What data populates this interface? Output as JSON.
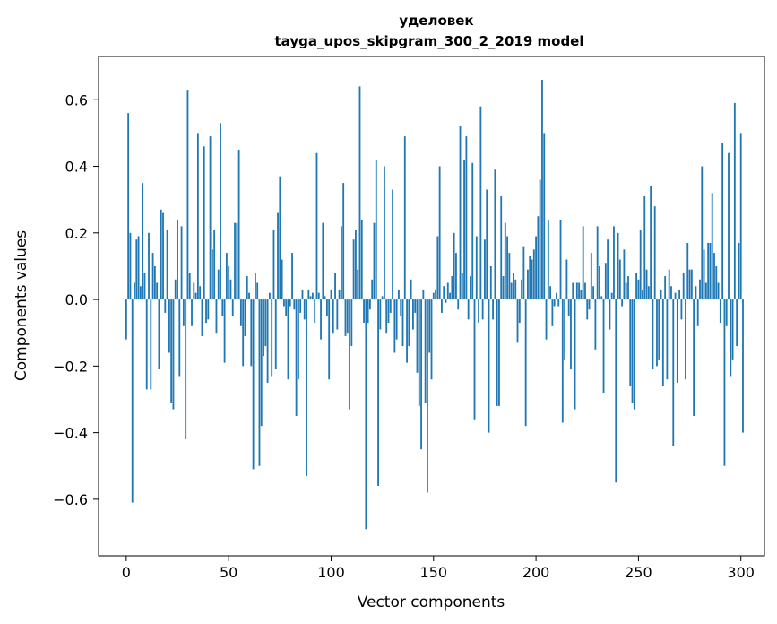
{
  "chart_data": {
    "type": "bar",
    "title": "уделовек",
    "subtitle": "tayga_upos_skipgram_300_2_2019 model",
    "xlabel": "Vector components",
    "ylabel": "Components values",
    "xlim": [
      -13.5,
      311.5
    ],
    "ylim": [
      -0.77,
      0.73
    ],
    "x_ticks": [
      0,
      50,
      100,
      150,
      200,
      250,
      300
    ],
    "x_tick_labels": [
      "0",
      "50",
      "100",
      "150",
      "200",
      "250",
      "300"
    ],
    "y_ticks": [
      -0.6,
      -0.4,
      -0.2,
      0.0,
      0.2,
      0.4,
      0.6
    ],
    "y_tick_labels": [
      "−0.6",
      "−0.4",
      "−0.2",
      "0.0",
      "0.2",
      "0.4",
      "0.6"
    ],
    "bar_color": "#1f77b4",
    "values": [
      -0.12,
      0.56,
      0.2,
      -0.61,
      0.05,
      0.18,
      0.19,
      0.04,
      0.35,
      0.08,
      -0.27,
      0.2,
      -0.27,
      0.14,
      0.1,
      0.05,
      -0.21,
      0.27,
      0.26,
      -0.04,
      0.21,
      -0.16,
      -0.31,
      -0.33,
      0.06,
      0.24,
      -0.23,
      0.22,
      -0.08,
      -0.42,
      0.63,
      0.08,
      -0.08,
      0.05,
      0.02,
      0.5,
      0.04,
      -0.11,
      0.46,
      -0.07,
      -0.06,
      0.49,
      0.15,
      0.21,
      -0.1,
      0.09,
      0.53,
      -0.05,
      -0.19,
      0.14,
      0.1,
      0.06,
      -0.05,
      0.23,
      0.23,
      0.45,
      -0.08,
      -0.2,
      -0.11,
      0.07,
      0.02,
      -0.2,
      -0.51,
      0.08,
      0.05,
      -0.5,
      -0.38,
      -0.17,
      -0.14,
      -0.25,
      0.02,
      -0.23,
      0.21,
      -0.21,
      0.26,
      0.37,
      0.12,
      -0.02,
      -0.05,
      -0.24,
      -0.02,
      0.14,
      -0.03,
      -0.35,
      -0.24,
      -0.04,
      0.03,
      -0.06,
      -0.53,
      0.03,
      0.01,
      0.02,
      -0.07,
      0.44,
      0.02,
      -0.12,
      0.23,
      0.01,
      -0.05,
      -0.24,
      0.03,
      -0.1,
      0.08,
      -0.09,
      0.03,
      0.22,
      0.35,
      -0.11,
      -0.1,
      -0.33,
      -0.14,
      0.18,
      0.21,
      0.09,
      0.64,
      0.24,
      -0.07,
      -0.69,
      -0.07,
      -0.03,
      0.06,
      0.23,
      0.42,
      -0.56,
      -0.09,
      0.01,
      0.4,
      -0.1,
      -0.07,
      -0.04,
      0.33,
      -0.16,
      -0.12,
      0.03,
      -0.05,
      -0.14,
      0.49,
      -0.19,
      -0.14,
      0.06,
      -0.09,
      -0.04,
      -0.22,
      -0.32,
      -0.45,
      0.03,
      -0.31,
      -0.58,
      -0.16,
      -0.24,
      0.02,
      0.03,
      0.19,
      0.4,
      -0.04,
      0.04,
      -0.01,
      0.05,
      0.02,
      0.07,
      0.2,
      0.14,
      -0.03,
      0.52,
      0.08,
      0.42,
      0.49,
      -0.06,
      0.07,
      0.41,
      -0.36,
      0.19,
      -0.07,
      0.58,
      -0.06,
      0.18,
      0.33,
      -0.4,
      0.1,
      -0.06,
      0.39,
      -0.32,
      -0.32,
      0.31,
      0.07,
      0.23,
      0.19,
      0.14,
      0.05,
      0.08,
      0.06,
      -0.13,
      -0.07,
      0.06,
      0.16,
      -0.38,
      0.09,
      0.13,
      0.12,
      0.15,
      0.19,
      0.25,
      0.36,
      0.66,
      0.5,
      -0.12,
      0.24,
      0.04,
      -0.08,
      -0.02,
      0.02,
      -0.02,
      0.24,
      -0.37,
      -0.18,
      0.12,
      -0.05,
      -0.21,
      0.05,
      -0.33,
      0.05,
      0.05,
      0.03,
      0.22,
      0.05,
      -0.06,
      -0.03,
      0.14,
      0.04,
      -0.15,
      0.22,
      0.1,
      0.01,
      -0.28,
      0.11,
      0.18,
      -0.09,
      0.02,
      0.22,
      -0.55,
      0.2,
      0.12,
      -0.02,
      0.15,
      0.05,
      0.07,
      -0.26,
      -0.31,
      -0.33,
      0.08,
      0.06,
      0.21,
      0.03,
      0.31,
      0.09,
      0.04,
      0.34,
      -0.21,
      0.28,
      -0.2,
      -0.18,
      0.03,
      -0.26,
      0.07,
      -0.24,
      0.09,
      0.04,
      -0.44,
      0.02,
      -0.25,
      0.03,
      -0.06,
      0.08,
      -0.24,
      0.17,
      0.09,
      0.09,
      -0.35,
      0.04,
      -0.08,
      0.06,
      0.4,
      0.15,
      0.05,
      0.17,
      0.17,
      0.32,
      0.14,
      0.1,
      0.05,
      -0.07,
      0.47,
      -0.5,
      -0.08,
      0.44,
      -0.23,
      -0.18,
      0.59,
      -0.14,
      0.17,
      0.5,
      -0.4
    ]
  }
}
